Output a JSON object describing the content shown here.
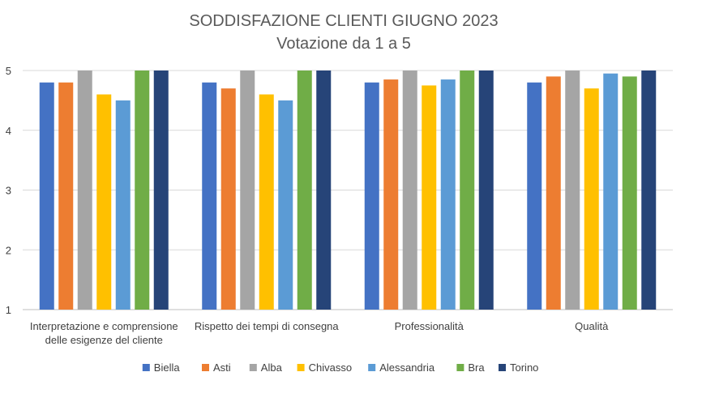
{
  "chart_data": {
    "type": "bar",
    "title": "SODDISFAZIONE CLIENTI GIUGNO 2023",
    "subtitle": "Votazione da 1 a 5",
    "categories": [
      [
        "Interpretazione e comprensione",
        "delle esigenze del cliente"
      ],
      [
        "Rispetto dei tempi di consegna"
      ],
      [
        "Professionalità"
      ],
      [
        "Qualità"
      ]
    ],
    "series": [
      {
        "name": "Biella",
        "color": "#4472C4",
        "values": [
          4.8,
          4.8,
          4.8,
          4.8
        ]
      },
      {
        "name": "Asti",
        "color": "#ED7D31",
        "values": [
          4.8,
          4.7,
          4.85,
          4.9
        ]
      },
      {
        "name": "Alba",
        "color": "#A5A5A5",
        "values": [
          5,
          5,
          5,
          5
        ]
      },
      {
        "name": "Chivasso",
        "color": "#FFC000",
        "values": [
          4.6,
          4.6,
          4.75,
          4.7
        ]
      },
      {
        "name": "Alessandria",
        "color": "#5B9BD5",
        "values": [
          4.5,
          4.5,
          4.85,
          4.95
        ]
      },
      {
        "name": "Bra",
        "color": "#70AD47",
        "values": [
          5,
          5,
          5,
          4.9
        ]
      },
      {
        "name": "Torino",
        "color": "#264478",
        "values": [
          5,
          5,
          5,
          5
        ]
      }
    ],
    "xlabel": "",
    "ylabel": "",
    "ylim": [
      1,
      5
    ],
    "yticks": [
      1,
      2,
      3,
      4,
      5
    ],
    "grid": true,
    "legend": "bottom"
  }
}
